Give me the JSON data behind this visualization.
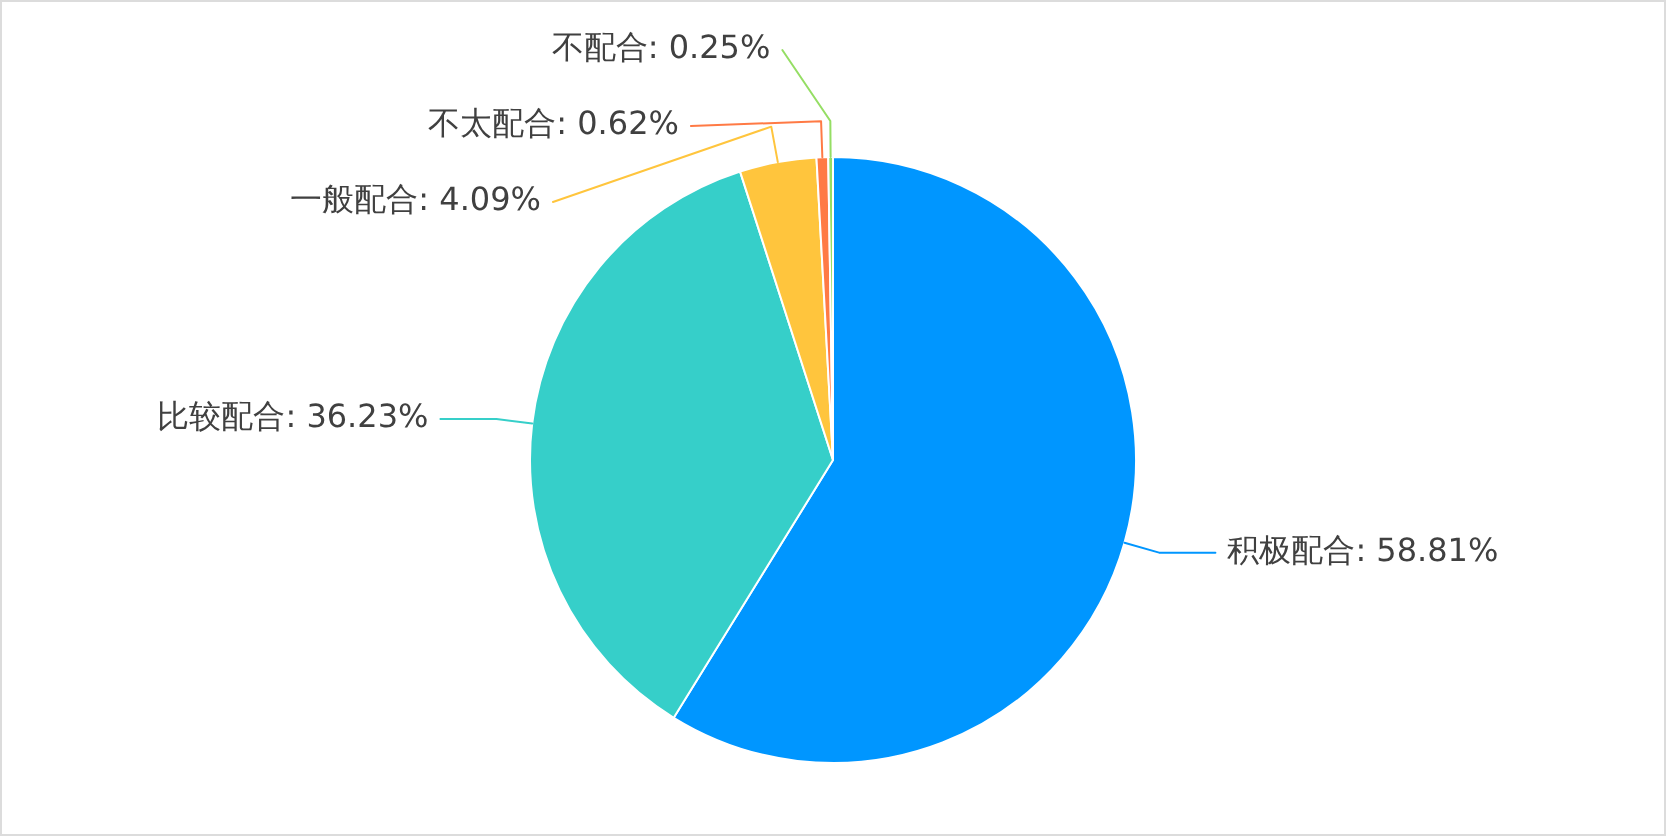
{
  "chart_data": {
    "type": "pie",
    "categories": [
      "积极配合",
      "比较配合",
      "一般配合",
      "不太配合",
      "不配合"
    ],
    "values": [
      58.81,
      36.23,
      4.09,
      0.62,
      0.25
    ],
    "colors": [
      "#0096ff",
      "#36cfc9",
      "#ffc53d",
      "#ff7a45",
      "#95de64"
    ],
    "value_labels": [
      "58.81%",
      "36.23%",
      "4.09%",
      "0.62%",
      "0.25%"
    ]
  }
}
